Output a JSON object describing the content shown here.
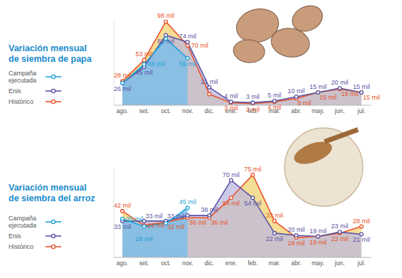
{
  "chart_data": [
    {
      "type": "area",
      "title": "Variación mensual de siembra de papa",
      "categories": [
        "ago.",
        "set.",
        "oct.",
        "nov.",
        "dic.",
        "ene.",
        "feb.",
        "mar.",
        "abr.",
        "may.",
        "jun.",
        "jul."
      ],
      "series": [
        {
          "name": "Campaña ejecutada",
          "color": "#1ea3d8",
          "values": [
            26,
            48,
            78,
            55,
            null,
            null,
            null,
            null,
            null,
            null,
            null,
            null
          ],
          "value_labels": [
            null,
            "48 mil",
            null,
            "55 mil",
            null,
            null,
            null,
            null,
            null,
            null,
            null,
            null
          ]
        },
        {
          "name": "Enis",
          "color": "#5b55a5",
          "values": [
            26,
            45,
            82,
            74,
            21,
            4,
            3,
            5,
            10,
            15,
            20,
            15
          ],
          "value_labels": [
            "26 mil",
            "45 mil",
            "82 mil",
            "74 mil",
            "21 mil",
            "4 mil",
            "3 mil",
            "5 mil",
            "10 mil",
            "15 mil",
            "20 mil",
            "15 mil"
          ]
        },
        {
          "name": "Histórico",
          "color": "#e8532b",
          "values": [
            28,
            53,
            98,
            70,
            13,
            3,
            2,
            4,
            8,
            15,
            19,
            15
          ],
          "value_labels": [
            "28 mil",
            "53 mil",
            "98 mil",
            "70 mil",
            null,
            "3 mil",
            "2 mil",
            "4 mil",
            "8 mil",
            "15 mil",
            "19 mil",
            "15 mil"
          ]
        }
      ],
      "ylim": [
        0,
        100
      ],
      "tick_labels": "x",
      "data_labels": true,
      "marker": "circle",
      "legend": "left"
    },
    {
      "type": "area",
      "title": "Variación mensual de siembra del arroz",
      "categories": [
        "ago.",
        "set.",
        "oct.",
        "nov.",
        "dic.",
        "ene.",
        "feb.",
        "mar.",
        "abr.",
        "may.",
        "jun.",
        "jul."
      ],
      "series": [
        {
          "name": "Campaña ejecutada",
          "color": "#1ea3d8",
          "values": [
            35,
            28,
            31,
            45,
            null,
            null,
            null,
            null,
            null,
            null,
            null,
            null
          ],
          "value_labels": [
            "35 mil",
            "28 mil",
            null,
            "45 mil",
            null,
            null,
            null,
            null,
            null,
            null,
            null,
            null
          ]
        },
        {
          "name": "Enis",
          "color": "#5b55a5",
          "values": [
            33,
            33,
            33,
            38,
            38,
            70,
            54,
            22,
            20,
            19,
            23,
            21
          ],
          "value_labels": [
            "33 mil",
            "33 mil",
            "33 mil",
            null,
            "38 mil",
            "70 mil",
            "54 mil",
            "22 mil",
            "20 mil",
            "19 mil",
            "23 mil",
            "21 mil"
          ]
        },
        {
          "name": "Histórico",
          "color": "#e8532b",
          "values": [
            42,
            29,
            32,
            36,
            36,
            54,
            75,
            33,
            18,
            19,
            22,
            28
          ],
          "value_labels": [
            "42 mil",
            "29 mil",
            "32 mil",
            "36 mil",
            "36 mil",
            "54 mil",
            "75 mil",
            "33 mil",
            "18 mil",
            "19 mil",
            "22 mil",
            "28 mil"
          ]
        }
      ],
      "ylim": [
        0,
        80
      ],
      "tick_labels": "x",
      "data_labels": true,
      "marker": "circle",
      "legend": "left"
    }
  ]
}
